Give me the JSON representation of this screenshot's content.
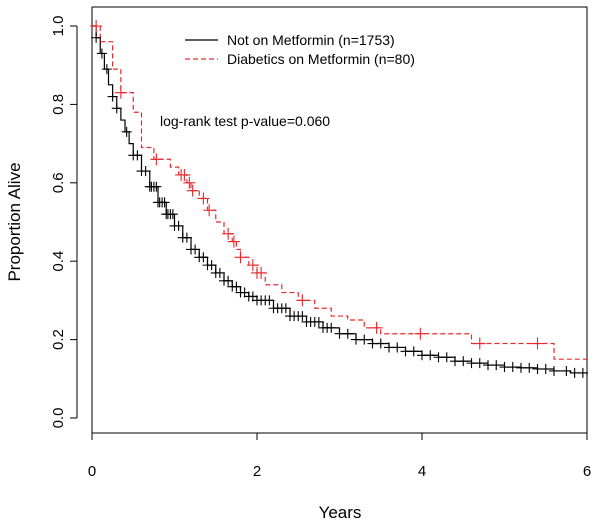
{
  "chart_data": {
    "type": "line",
    "subtype": "kaplan-meier",
    "xlabel": "Years",
    "ylabel": "Proportion Alive",
    "xlim": [
      0,
      6
    ],
    "ylim": [
      0,
      1
    ],
    "xticks": [
      0,
      2,
      4,
      6
    ],
    "xtick_labels": [
      "0",
      "2",
      "4",
      "6"
    ],
    "yticks": [
      0.0,
      0.2,
      0.4,
      0.6,
      0.8,
      1.0
    ],
    "ytick_labels": [
      "0.0",
      "0.2",
      "0.4",
      "0.6",
      "0.8",
      "1.0"
    ],
    "annotation": "log-rank test p-value=0.060",
    "legend_position": "top-center",
    "series": [
      {
        "name": "Not on Metformin (n=1753)",
        "color": "#000000",
        "dash": "solid",
        "x": [
          0,
          0.05,
          0.1,
          0.15,
          0.2,
          0.25,
          0.3,
          0.35,
          0.4,
          0.45,
          0.5,
          0.6,
          0.7,
          0.8,
          0.9,
          1.0,
          1.1,
          1.2,
          1.3,
          1.4,
          1.5,
          1.6,
          1.7,
          1.8,
          1.9,
          2.0,
          2.2,
          2.4,
          2.6,
          2.8,
          3.0,
          3.2,
          3.4,
          3.6,
          3.8,
          4.0,
          4.2,
          4.4,
          4.6,
          4.8,
          5.0,
          5.2,
          5.4,
          5.6,
          5.8,
          6.0
        ],
        "y": [
          1.0,
          0.97,
          0.93,
          0.89,
          0.85,
          0.82,
          0.79,
          0.76,
          0.73,
          0.7,
          0.67,
          0.63,
          0.59,
          0.55,
          0.52,
          0.49,
          0.46,
          0.43,
          0.41,
          0.39,
          0.37,
          0.35,
          0.335,
          0.32,
          0.31,
          0.3,
          0.28,
          0.26,
          0.245,
          0.23,
          0.215,
          0.2,
          0.19,
          0.18,
          0.17,
          0.16,
          0.155,
          0.145,
          0.14,
          0.135,
          0.13,
          0.128,
          0.125,
          0.12,
          0.115,
          0.11
        ],
        "censor_x": [
          0.05,
          0.12,
          0.18,
          0.25,
          0.3,
          0.42,
          0.5,
          0.55,
          0.6,
          0.65,
          0.7,
          0.72,
          0.75,
          0.78,
          0.8,
          0.82,
          0.85,
          0.88,
          0.9,
          0.92,
          0.95,
          0.98,
          1.0,
          1.05,
          1.1,
          1.15,
          1.2,
          1.25,
          1.3,
          1.35,
          1.4,
          1.45,
          1.5,
          1.55,
          1.6,
          1.65,
          1.7,
          1.75,
          1.8,
          1.85,
          1.9,
          1.95,
          2.0,
          2.05,
          2.1,
          2.15,
          2.2,
          2.25,
          2.3,
          2.35,
          2.4,
          2.45,
          2.5,
          2.55,
          2.6,
          2.65,
          2.7,
          2.75,
          2.8,
          2.85,
          2.9,
          3.0,
          3.1,
          3.2,
          3.3,
          3.4,
          3.5,
          3.6,
          3.7,
          3.8,
          3.9,
          4.0,
          4.1,
          4.2,
          4.3,
          4.4,
          4.5,
          4.6,
          4.7,
          4.8,
          4.9,
          5.0,
          5.1,
          5.2,
          5.3,
          5.4,
          5.5,
          5.6,
          5.75,
          5.85,
          5.95
        ]
      },
      {
        "name": "Diabetics on Metformin (n=80)",
        "color": "#e8292b",
        "dash": "dashed",
        "x": [
          0,
          0.1,
          0.25,
          0.35,
          0.5,
          0.6,
          0.75,
          0.95,
          1.05,
          1.15,
          1.2,
          1.3,
          1.4,
          1.5,
          1.6,
          1.7,
          1.75,
          1.8,
          1.9,
          2.0,
          2.1,
          2.3,
          2.5,
          2.7,
          2.9,
          3.1,
          3.3,
          3.5,
          3.8,
          4.2,
          4.6,
          4.9,
          5.2,
          5.6,
          6.0
        ],
        "y": [
          1.0,
          0.96,
          0.89,
          0.83,
          0.78,
          0.69,
          0.66,
          0.64,
          0.62,
          0.6,
          0.58,
          0.56,
          0.53,
          0.5,
          0.47,
          0.45,
          0.43,
          0.41,
          0.39,
          0.37,
          0.34,
          0.32,
          0.3,
          0.28,
          0.26,
          0.25,
          0.23,
          0.215,
          0.215,
          0.215,
          0.19,
          0.19,
          0.19,
          0.15,
          0.15
        ],
        "censor_x": [
          0.05,
          0.35,
          0.78,
          1.08,
          1.12,
          1.18,
          1.22,
          1.35,
          1.42,
          1.65,
          1.72,
          1.8,
          1.95,
          2.0,
          2.05,
          2.55,
          3.45,
          3.98,
          4.7,
          5.4
        ]
      }
    ]
  }
}
